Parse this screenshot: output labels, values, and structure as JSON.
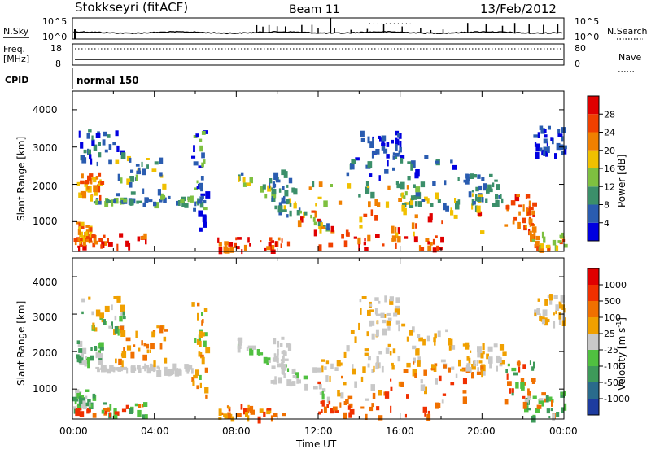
{
  "header": {
    "title": "Stokkseyri (fitACF)",
    "beam": "Beam 11",
    "date": "13/Feb/2012"
  },
  "top_panels": {
    "nsky_label": "N.Sky",
    "nsky_ticks": [
      "10^5",
      "10^0"
    ],
    "nsearch_label": "N.Search",
    "nsearch_ticks": [
      "10^5",
      "10^0"
    ],
    "freq_label": "Freq.",
    "freq_unit": "[MHz]",
    "freq_ticks": [
      "18",
      "8"
    ],
    "nave_label": "Nave",
    "nave_ticks": [
      "80",
      "0"
    ],
    "cpid_label": "CPID",
    "cpid_value": "normal 150"
  },
  "colors": {
    "power_scale": [
      "#0000e0",
      "#2a5cb0",
      "#3b8f6a",
      "#7ec040",
      "#f0c000",
      "#f08000",
      "#f04000",
      "#e00000"
    ],
    "velocity_scale": [
      "#1e3ca0",
      "#2a6b8c",
      "#3e9a5a",
      "#50c040",
      "#c8c8c8",
      "#f0a000",
      "#f07000",
      "#f03000",
      "#e00000"
    ]
  },
  "chart_data": [
    {
      "type": "heatmap",
      "panel": "power",
      "ylabel": "Slant Range [km]",
      "yticks": [
        "4000",
        "3000",
        "2000",
        "1000"
      ],
      "ylim": [
        200,
        4500
      ],
      "xlabel": "Time UT",
      "xticks": [
        "00:00",
        "04:00",
        "08:00",
        "12:00",
        "16:00",
        "20:00",
        "00:00"
      ],
      "colorbar_label": "Power [dB]",
      "colorbar_ticks": [
        "28",
        "24",
        "20",
        "16",
        "12",
        "8",
        "4"
      ],
      "clim": [
        0,
        30
      ]
    },
    {
      "type": "heatmap",
      "panel": "velocity",
      "ylabel": "Slant Range [km]",
      "yticks": [
        "4000",
        "3000",
        "2000",
        "1000"
      ],
      "ylim": [
        200,
        4500
      ],
      "xlabel": "Time UT",
      "xticks": [
        "00:00",
        "04:00",
        "08:00",
        "12:00",
        "16:00",
        "20:00",
        "00:00"
      ],
      "colorbar_label": "Velocity [m s",
      "colorbar_label_sup": "-1",
      "colorbar_label_end": "]",
      "colorbar_ticks": [
        "1000",
        "500",
        "100",
        "25",
        "-25",
        "-100",
        "-500",
        "-1000"
      ],
      "clim": [
        -1000,
        1000
      ]
    }
  ]
}
